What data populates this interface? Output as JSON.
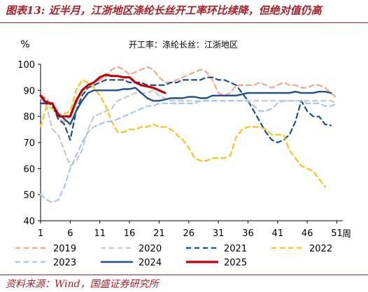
{
  "header": {
    "title": "图表13: 近半月，江浙地区涤纶长丝开工率环比续降，但绝对值仍高"
  },
  "footer": {
    "source": "资料来源：Wind，国盛证券研究所"
  },
  "colors": {
    "2019": "#f2a887",
    "2020": "#c8c8c8",
    "2021": "#1f4e8c",
    "2022": "#f5c518",
    "2023": "#a9c6e4",
    "2024": "#1f4e8c",
    "2025": "#c00000",
    "brand": "#a8202a"
  },
  "chart_data": {
    "type": "line",
    "title": "开工率：涤纶长丝：江浙地区",
    "ylabel": "%",
    "xlabel": "周",
    "ylim": [
      40,
      100
    ],
    "xlim": [
      1,
      52
    ],
    "yticks": [
      40,
      50,
      60,
      70,
      80,
      90,
      100
    ],
    "xticks": [
      1,
      6,
      11,
      16,
      21,
      26,
      31,
      36,
      41,
      46,
      51
    ],
    "legend_position": "bottom",
    "grid": false,
    "series": [
      {
        "name": "2019",
        "style": "dashed",
        "x": [
          1,
          2,
          3,
          4,
          5,
          6,
          7,
          8,
          9,
          10,
          11,
          12,
          13,
          14,
          15,
          16,
          17,
          18,
          19,
          20,
          21,
          22,
          23,
          24,
          25,
          26,
          27,
          28,
          29,
          30,
          31,
          32,
          33,
          34,
          35,
          36,
          37,
          38,
          39,
          40,
          41,
          42,
          43,
          44,
          45,
          46,
          47,
          48,
          49,
          50,
          51
        ],
        "y": [
          88,
          87,
          84,
          79,
          78,
          80,
          85,
          90,
          92,
          93,
          94,
          95,
          98,
          99,
          98,
          96,
          97,
          98,
          99,
          98,
          95,
          93,
          93,
          94,
          95,
          96,
          97,
          98,
          97,
          94,
          89,
          88,
          89,
          92,
          92,
          92,
          92,
          93,
          92,
          91,
          92,
          93,
          92,
          92,
          91,
          91,
          92,
          92,
          91,
          89,
          87
        ]
      },
      {
        "name": "2020",
        "style": "dashed",
        "x": [
          1,
          2,
          3,
          4,
          5,
          6,
          7,
          8,
          9,
          10,
          11,
          12,
          13,
          14,
          15,
          16,
          17,
          18,
          19,
          20,
          21,
          22,
          23,
          24,
          25,
          26,
          27,
          28,
          29,
          30,
          31,
          32,
          33,
          34,
          35,
          36,
          37,
          38,
          39,
          40,
          41,
          42,
          43,
          44,
          45,
          46,
          47,
          48,
          49,
          50,
          51
        ],
        "y": [
          87,
          84,
          75,
          73,
          67,
          61,
          63,
          67,
          75,
          80,
          81,
          82,
          83,
          86,
          87,
          88,
          89,
          89,
          89,
          90,
          88,
          87,
          86,
          86,
          86,
          86,
          86,
          86,
          86,
          86,
          86,
          86,
          86,
          86,
          86,
          86,
          86,
          86,
          86,
          86,
          86,
          86,
          86,
          86,
          86,
          86,
          86,
          86,
          86,
          86,
          85
        ]
      },
      {
        "name": "2021",
        "style": "dashed",
        "x": [
          1,
          2,
          3,
          4,
          5,
          6,
          7,
          8,
          9,
          10,
          11,
          12,
          13,
          14,
          15,
          16,
          17,
          18,
          19,
          20,
          21,
          22,
          23,
          24,
          25,
          26,
          27,
          28,
          29,
          30,
          31,
          32,
          33,
          34,
          35,
          36,
          37,
          38,
          39,
          40,
          41,
          42,
          43,
          44,
          45,
          46,
          47,
          48,
          49,
          50
        ],
        "y": [
          88,
          86,
          84,
          79,
          77,
          71,
          82,
          88,
          91,
          92,
          93,
          94,
          94,
          94,
          94,
          93,
          93,
          93,
          92,
          92,
          92,
          92,
          93,
          93,
          94,
          94,
          94,
          94,
          95,
          95,
          94,
          94,
          93,
          92,
          89,
          86,
          82,
          78,
          74,
          71,
          70,
          71,
          73,
          78,
          86,
          82,
          80,
          80,
          77,
          76.5
        ]
      },
      {
        "name": "2022",
        "style": "dashed",
        "x": [
          1,
          2,
          3,
          4,
          5,
          6,
          7,
          8,
          9,
          10,
          11,
          12,
          13,
          14,
          15,
          16,
          17,
          18,
          19,
          20,
          21,
          22,
          23,
          24,
          25,
          26,
          27,
          28,
          29,
          30,
          31,
          32,
          33,
          34,
          35,
          36,
          37,
          38,
          39,
          40,
          41,
          42,
          43,
          44,
          45,
          46,
          47,
          48,
          49
        ],
        "y": [
          76,
          84,
          83,
          81,
          81,
          82,
          90,
          94,
          93,
          91,
          88,
          84,
          78,
          74,
          74,
          75,
          75,
          76,
          76,
          77,
          76,
          76,
          75,
          73,
          71,
          68,
          64,
          63,
          63,
          64,
          64,
          64,
          65,
          72,
          75,
          76,
          76,
          76,
          75,
          73,
          73,
          73,
          67,
          64,
          61,
          60,
          59,
          56,
          53
        ]
      },
      {
        "name": "2023",
        "style": "dashed",
        "x": [
          1,
          2,
          3,
          4,
          5,
          6,
          7,
          8,
          9,
          10,
          11,
          12,
          13,
          14,
          15,
          16,
          17,
          18,
          19,
          20,
          21,
          22,
          23,
          24,
          25,
          26,
          27,
          28,
          29,
          30,
          31,
          32,
          33,
          34,
          35,
          36,
          37,
          38,
          39,
          40,
          41,
          42,
          43,
          44,
          45,
          46,
          47,
          48,
          49,
          50,
          51
        ],
        "y": [
          50,
          48,
          47,
          48,
          53,
          60,
          65,
          70,
          74,
          76,
          77,
          78,
          78,
          79,
          80,
          81,
          82,
          83,
          84,
          84,
          85,
          85,
          85,
          85,
          85,
          85,
          85,
          86,
          86,
          86,
          86,
          86,
          86,
          86,
          86,
          86,
          84,
          82,
          82,
          83,
          85,
          86,
          86,
          86,
          86,
          85,
          85,
          85,
          84,
          84,
          85
        ]
      },
      {
        "name": "2024",
        "style": "solid",
        "x": [
          1,
          2,
          3,
          4,
          5,
          6,
          7,
          8,
          9,
          10,
          11,
          12,
          13,
          14,
          15,
          16,
          17,
          18,
          19,
          20,
          21,
          22,
          23,
          24,
          25,
          26,
          27,
          28,
          29,
          30,
          31,
          32,
          33,
          34,
          35,
          36,
          37,
          38,
          39,
          40,
          41,
          42,
          43,
          44,
          45,
          46,
          47,
          48,
          49,
          50
        ],
        "y": [
          85,
          85,
          85,
          81,
          79,
          77,
          82,
          86,
          89,
          90,
          90,
          90,
          90,
          90,
          90.5,
          90.5,
          91,
          89,
          87,
          86,
          86,
          86.5,
          87,
          87,
          87,
          87.5,
          87.5,
          87,
          87,
          88,
          88,
          88,
          88,
          88,
          88.5,
          89,
          89,
          89,
          89,
          89,
          89,
          89,
          89,
          89.5,
          89,
          89,
          89,
          89.5,
          89.5,
          89
        ]
      },
      {
        "name": "2025",
        "style": "solid",
        "x": [
          1,
          2,
          3,
          4,
          5,
          6,
          7,
          8,
          9,
          10,
          11,
          12,
          13,
          14,
          15,
          16,
          17,
          18,
          19,
          20,
          21,
          22
        ],
        "y": [
          88,
          85,
          85,
          80,
          80,
          80,
          86,
          90,
          92,
          93,
          95,
          96,
          95.5,
          95.5,
          95,
          95,
          93,
          92,
          91.5,
          91,
          90,
          89
        ]
      }
    ]
  }
}
